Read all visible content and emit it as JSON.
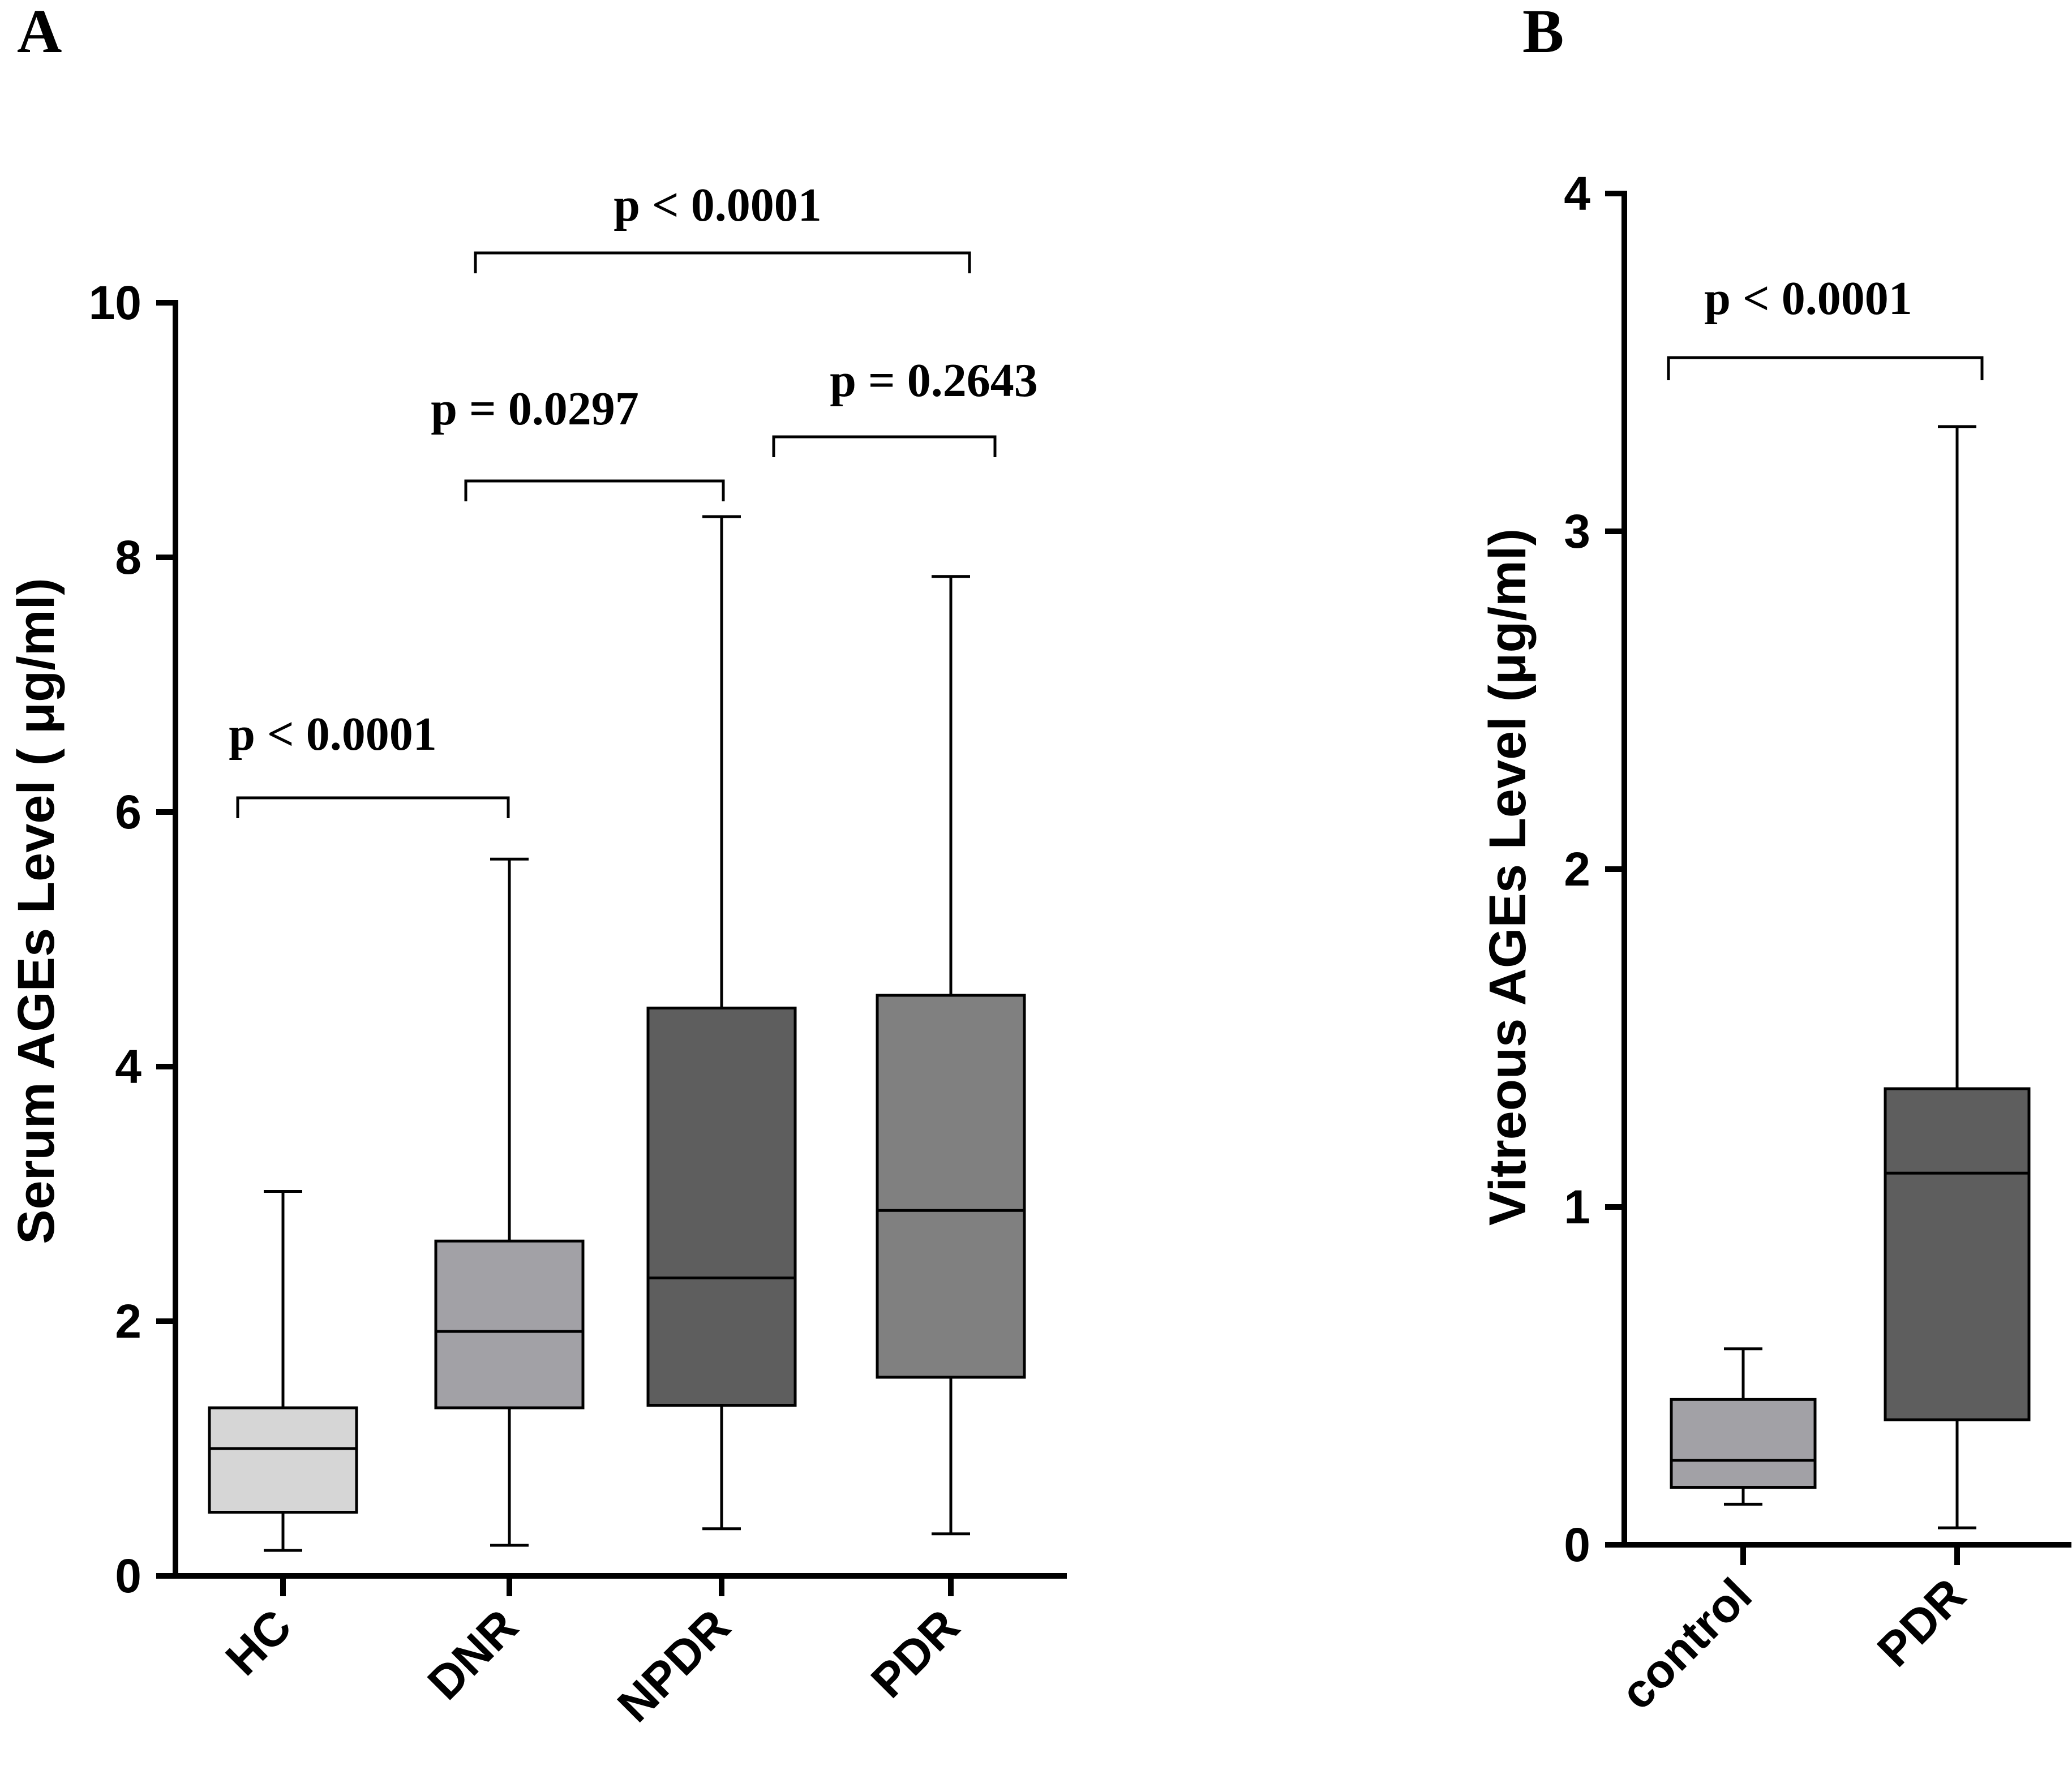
{
  "chart_data": [
    {
      "type": "box",
      "panel_label": "A",
      "ylabel": "Serum AGEs  Level ( μg/ml)",
      "ylim": [
        0,
        10
      ],
      "yticks": [
        0,
        2,
        4,
        6,
        8,
        10
      ],
      "categories": [
        "HC",
        "DNR",
        "NPDR",
        "PDR"
      ],
      "boxes": [
        {
          "category": "HC",
          "min": 0.2,
          "q1": 0.5,
          "median": 1.0,
          "q3": 1.32,
          "max": 3.02,
          "color": "#d6d6d6"
        },
        {
          "category": "DNR",
          "min": 0.24,
          "q1": 1.32,
          "median": 1.92,
          "q3": 2.63,
          "max": 5.63,
          "color": "#a2a1a6"
        },
        {
          "category": "NPDR",
          "min": 0.37,
          "q1": 1.34,
          "median": 2.34,
          "q3": 4.46,
          "max": 8.32,
          "color": "#5e5e5e"
        },
        {
          "category": "PDR",
          "min": 0.33,
          "q1": 1.56,
          "median": 2.87,
          "q3": 4.56,
          "max": 7.85,
          "color": "#808080"
        }
      ],
      "comparisons": [
        {
          "from": "HC",
          "to": "DNR",
          "label": "p < 0.0001"
        },
        {
          "from": "DNR",
          "to": "NPDR",
          "label": "p = 0.0297"
        },
        {
          "from": "NPDR",
          "to": "PDR",
          "label": "p = 0.2643"
        },
        {
          "from": "DNR",
          "to": "PDR",
          "label": "p < 0.0001"
        }
      ]
    },
    {
      "type": "box",
      "panel_label": "B",
      "ylabel": "Vitreous AGEs  Level (μg/ml)",
      "ylim": [
        0,
        4
      ],
      "yticks": [
        0,
        1,
        2,
        3,
        4
      ],
      "categories": [
        "control",
        "PDR"
      ],
      "boxes": [
        {
          "category": "control",
          "min": 0.12,
          "q1": 0.17,
          "median": 0.25,
          "q3": 0.43,
          "max": 0.58,
          "color": "#a2a1a6"
        },
        {
          "category": "PDR",
          "min": 0.05,
          "q1": 0.37,
          "median": 1.1,
          "q3": 1.35,
          "max": 3.31,
          "color": "#5e5e5e"
        }
      ],
      "comparisons": [
        {
          "from": "control",
          "to": "PDR",
          "label": "p < 0.0001"
        }
      ]
    }
  ]
}
